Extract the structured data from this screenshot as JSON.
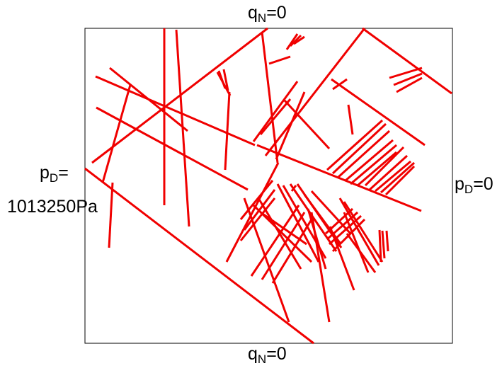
{
  "boundary_labels": {
    "top": {
      "symbol": "q",
      "sub": "N",
      "value": "=0"
    },
    "bottom": {
      "symbol": "q",
      "sub": "N",
      "value": "=0"
    },
    "right": {
      "symbol": "p",
      "sub": "D",
      "value": "=0"
    },
    "left": {
      "symbol": "p",
      "sub": "D",
      "value": "=",
      "value2": "1013250Pa"
    }
  },
  "colors": {
    "fracture": "#f00000",
    "frame": "#000000",
    "background": "#ffffff"
  }
}
